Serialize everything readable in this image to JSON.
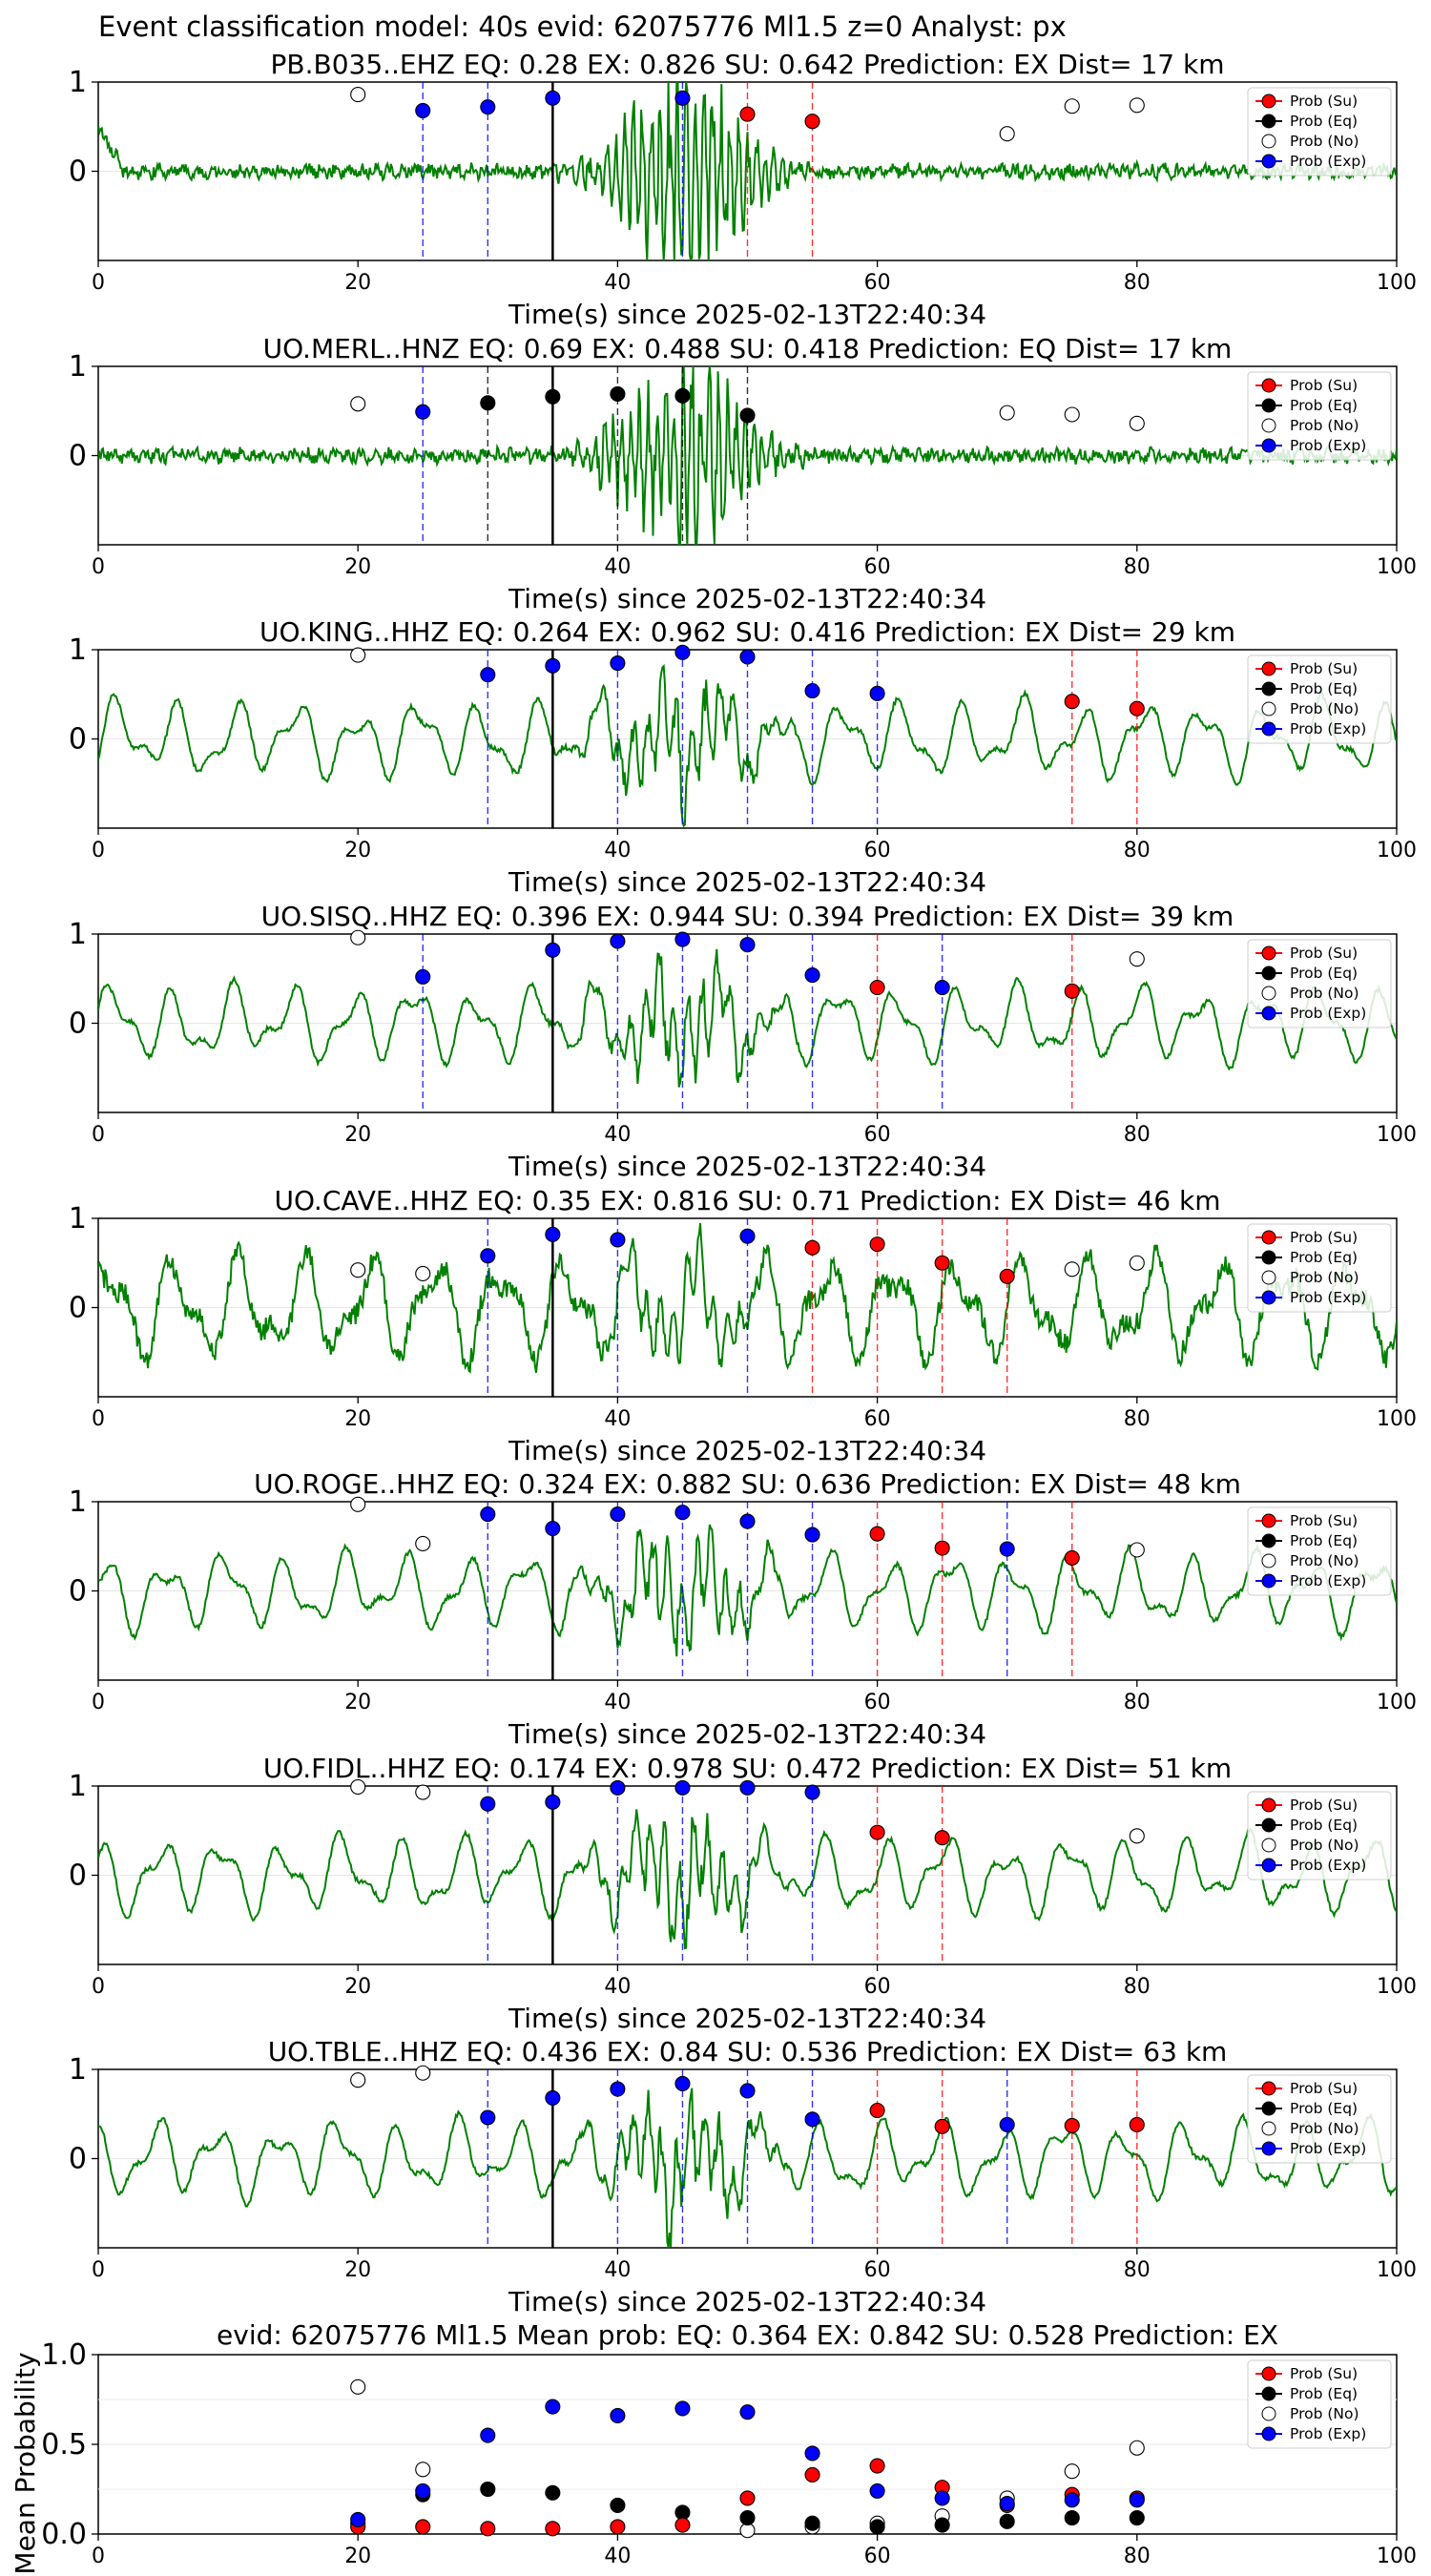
{
  "suptitle": "Event classification model: 40s evid: 62075776 Ml1.5 z=0 Analyst: px",
  "xlabel": "Time(s) since 2025-02-13T22:40:34",
  "legend": [
    "Prob (Su)",
    "Prob (Eq)",
    "Prob (No)",
    "Prob (Exp)"
  ],
  "colors": {
    "waveform": "#008000",
    "su": "#ff0000",
    "eq": "#000000",
    "no": "#ffffff",
    "exp": "#0000ff",
    "axis": "#000000"
  },
  "chart_data": [
    {
      "type": "line",
      "title": "PB.B035..EHZ   EQ: 0.28  EX: 0.826  SU: 0.642   Prediction: EX    Dist= 17 km",
      "xlim": [
        0,
        100
      ],
      "ylim": [
        -1,
        1
      ],
      "xticks": [
        0,
        20,
        40,
        60,
        80,
        100
      ],
      "yticks": [
        0,
        1
      ],
      "origin_line": 35,
      "waveform_style": "burst",
      "windows": [
        {
          "x": 25,
          "type": "exp"
        },
        {
          "x": 30,
          "type": "exp"
        },
        {
          "x": 45,
          "type": "exp"
        },
        {
          "x": 50,
          "type": "su"
        },
        {
          "x": 55,
          "type": "su"
        }
      ],
      "points": {
        "no": [
          [
            20,
            0.86
          ],
          [
            70,
            0.42
          ],
          [
            75,
            0.73
          ],
          [
            80,
            0.74
          ]
        ],
        "exp": [
          [
            25,
            0.68
          ],
          [
            30,
            0.72
          ],
          [
            35,
            0.82
          ],
          [
            45,
            0.82
          ]
        ],
        "su": [
          [
            50,
            0.64
          ],
          [
            55,
            0.56
          ]
        ],
        "eq": []
      }
    },
    {
      "type": "line",
      "title": "UO.MERL..HNZ   EQ: 0.69  EX: 0.488  SU: 0.418   Prediction: EQ    Dist= 17 km",
      "xlim": [
        0,
        100
      ],
      "ylim": [
        -1,
        1
      ],
      "xticks": [
        0,
        20,
        40,
        60,
        80,
        100
      ],
      "yticks": [
        0,
        1
      ],
      "origin_line": 35,
      "waveform_style": "burst",
      "windows": [
        {
          "x": 25,
          "type": "exp"
        },
        {
          "x": 30,
          "type": "eq"
        },
        {
          "x": 40,
          "type": "eq"
        },
        {
          "x": 45,
          "type": "eq"
        },
        {
          "x": 50,
          "type": "eq"
        }
      ],
      "points": {
        "no": [
          [
            20,
            0.58
          ],
          [
            70,
            0.48
          ],
          [
            75,
            0.46
          ],
          [
            80,
            0.36
          ]
        ],
        "exp": [
          [
            25,
            0.49
          ]
        ],
        "eq": [
          [
            30,
            0.59
          ],
          [
            35,
            0.66
          ],
          [
            40,
            0.69
          ],
          [
            45,
            0.67
          ],
          [
            50,
            0.45
          ]
        ],
        "su": []
      }
    },
    {
      "type": "line",
      "title": "UO.KING..HHZ   EQ: 0.264  EX: 0.962  SU: 0.416   Prediction: EX    Dist= 29 km",
      "xlim": [
        0,
        100
      ],
      "ylim": [
        -1,
        1
      ],
      "xticks": [
        0,
        20,
        40,
        60,
        80,
        100
      ],
      "yticks": [
        0,
        1
      ],
      "origin_line": 35,
      "waveform_style": "smooth",
      "windows": [
        {
          "x": 30,
          "type": "exp"
        },
        {
          "x": 40,
          "type": "exp"
        },
        {
          "x": 45,
          "type": "exp"
        },
        {
          "x": 50,
          "type": "exp"
        },
        {
          "x": 55,
          "type": "exp"
        },
        {
          "x": 60,
          "type": "exp"
        },
        {
          "x": 75,
          "type": "su"
        },
        {
          "x": 80,
          "type": "su"
        }
      ],
      "points": {
        "no": [
          [
            20,
            0.94
          ]
        ],
        "exp": [
          [
            30,
            0.72
          ],
          [
            35,
            0.82
          ],
          [
            40,
            0.85
          ],
          [
            45,
            0.97
          ],
          [
            50,
            0.92
          ],
          [
            55,
            0.54
          ],
          [
            60,
            0.51
          ]
        ],
        "su": [
          [
            75,
            0.42
          ],
          [
            80,
            0.34
          ]
        ],
        "eq": []
      }
    },
    {
      "type": "line",
      "title": "UO.SISQ..HHZ   EQ: 0.396  EX: 0.944  SU: 0.394   Prediction: EX    Dist= 39 km",
      "xlim": [
        0,
        100
      ],
      "ylim": [
        -1,
        1
      ],
      "xticks": [
        0,
        20,
        40,
        60,
        80,
        100
      ],
      "yticks": [
        0,
        1
      ],
      "origin_line": 35,
      "waveform_style": "smooth",
      "windows": [
        {
          "x": 25,
          "type": "exp"
        },
        {
          "x": 40,
          "type": "exp"
        },
        {
          "x": 45,
          "type": "exp"
        },
        {
          "x": 50,
          "type": "exp"
        },
        {
          "x": 55,
          "type": "exp"
        },
        {
          "x": 60,
          "type": "su"
        },
        {
          "x": 65,
          "type": "exp"
        },
        {
          "x": 75,
          "type": "su"
        }
      ],
      "points": {
        "no": [
          [
            20,
            0.96
          ],
          [
            80,
            0.72
          ]
        ],
        "exp": [
          [
            25,
            0.52
          ],
          [
            35,
            0.82
          ],
          [
            40,
            0.92
          ],
          [
            45,
            0.94
          ],
          [
            50,
            0.88
          ],
          [
            55,
            0.54
          ],
          [
            65,
            0.4
          ]
        ],
        "su": [
          [
            60,
            0.4
          ],
          [
            75,
            0.36
          ]
        ],
        "eq": []
      }
    },
    {
      "type": "line",
      "title": "UO.CAVE..HHZ   EQ: 0.35  EX: 0.816  SU: 0.71   Prediction: EX    Dist= 46 km",
      "xlim": [
        0,
        100
      ],
      "ylim": [
        -1,
        1
      ],
      "xticks": [
        0,
        20,
        40,
        60,
        80,
        100
      ],
      "yticks": [
        0,
        1
      ],
      "origin_line": 35,
      "waveform_style": "noisy",
      "windows": [
        {
          "x": 30,
          "type": "exp"
        },
        {
          "x": 40,
          "type": "exp"
        },
        {
          "x": 50,
          "type": "exp"
        },
        {
          "x": 55,
          "type": "su"
        },
        {
          "x": 60,
          "type": "su"
        },
        {
          "x": 65,
          "type": "su"
        },
        {
          "x": 70,
          "type": "su"
        }
      ],
      "points": {
        "no": [
          [
            20,
            0.42
          ],
          [
            25,
            0.38
          ],
          [
            75,
            0.43
          ],
          [
            80,
            0.5
          ]
        ],
        "exp": [
          [
            30,
            0.58
          ],
          [
            35,
            0.82
          ],
          [
            40,
            0.76
          ],
          [
            50,
            0.8
          ]
        ],
        "su": [
          [
            55,
            0.67
          ],
          [
            60,
            0.71
          ],
          [
            65,
            0.5
          ],
          [
            70,
            0.35
          ]
        ],
        "eq": []
      }
    },
    {
      "type": "line",
      "title": "UO.ROGE..HHZ   EQ: 0.324  EX: 0.882  SU: 0.636   Prediction: EX    Dist= 48 km",
      "xlim": [
        0,
        100
      ],
      "ylim": [
        -1,
        1
      ],
      "xticks": [
        0,
        20,
        40,
        60,
        80,
        100
      ],
      "yticks": [
        0,
        1
      ],
      "origin_line": 35,
      "waveform_style": "smooth",
      "windows": [
        {
          "x": 30,
          "type": "exp"
        },
        {
          "x": 40,
          "type": "exp"
        },
        {
          "x": 45,
          "type": "exp"
        },
        {
          "x": 50,
          "type": "exp"
        },
        {
          "x": 55,
          "type": "exp"
        },
        {
          "x": 60,
          "type": "su"
        },
        {
          "x": 65,
          "type": "su"
        },
        {
          "x": 70,
          "type": "exp"
        },
        {
          "x": 75,
          "type": "su"
        }
      ],
      "points": {
        "no": [
          [
            20,
            0.97
          ],
          [
            25,
            0.53
          ],
          [
            80,
            0.46
          ]
        ],
        "exp": [
          [
            30,
            0.86
          ],
          [
            35,
            0.7
          ],
          [
            40,
            0.86
          ],
          [
            45,
            0.88
          ],
          [
            50,
            0.78
          ],
          [
            55,
            0.63
          ],
          [
            70,
            0.47
          ]
        ],
        "su": [
          [
            60,
            0.64
          ],
          [
            65,
            0.48
          ],
          [
            75,
            0.37
          ]
        ],
        "eq": []
      }
    },
    {
      "type": "line",
      "title": "UO.FIDL..HHZ   EQ: 0.174  EX: 0.978  SU: 0.472   Prediction: EX    Dist= 51 km",
      "xlim": [
        0,
        100
      ],
      "ylim": [
        -1,
        1
      ],
      "xticks": [
        0,
        20,
        40,
        60,
        80,
        100
      ],
      "yticks": [
        0,
        1
      ],
      "origin_line": 35,
      "waveform_style": "smooth",
      "windows": [
        {
          "x": 30,
          "type": "exp"
        },
        {
          "x": 40,
          "type": "exp"
        },
        {
          "x": 45,
          "type": "exp"
        },
        {
          "x": 50,
          "type": "exp"
        },
        {
          "x": 55,
          "type": "exp"
        },
        {
          "x": 60,
          "type": "su"
        },
        {
          "x": 65,
          "type": "su"
        }
      ],
      "points": {
        "no": [
          [
            20,
            0.99
          ],
          [
            25,
            0.93
          ],
          [
            80,
            0.44
          ]
        ],
        "exp": [
          [
            30,
            0.8
          ],
          [
            35,
            0.82
          ],
          [
            40,
            0.98
          ],
          [
            45,
            0.98
          ],
          [
            50,
            0.98
          ],
          [
            55,
            0.93
          ]
        ],
        "su": [
          [
            60,
            0.48
          ],
          [
            65,
            0.42
          ]
        ],
        "eq": []
      }
    },
    {
      "type": "line",
      "title": "UO.TBLE..HHZ   EQ: 0.436  EX: 0.84  SU: 0.536   Prediction: EX    Dist= 63 km",
      "xlim": [
        0,
        100
      ],
      "ylim": [
        -1,
        1
      ],
      "xticks": [
        0,
        20,
        40,
        60,
        80,
        100
      ],
      "yticks": [
        0,
        1
      ],
      "origin_line": 35,
      "waveform_style": "smooth",
      "windows": [
        {
          "x": 30,
          "type": "exp"
        },
        {
          "x": 40,
          "type": "exp"
        },
        {
          "x": 45,
          "type": "exp"
        },
        {
          "x": 50,
          "type": "exp"
        },
        {
          "x": 55,
          "type": "exp"
        },
        {
          "x": 60,
          "type": "su"
        },
        {
          "x": 65,
          "type": "su"
        },
        {
          "x": 70,
          "type": "exp"
        },
        {
          "x": 75,
          "type": "su"
        },
        {
          "x": 80,
          "type": "su"
        }
      ],
      "points": {
        "no": [
          [
            20,
            0.88
          ],
          [
            25,
            0.96
          ]
        ],
        "exp": [
          [
            30,
            0.46
          ],
          [
            35,
            0.68
          ],
          [
            40,
            0.78
          ],
          [
            45,
            0.84
          ],
          [
            50,
            0.76
          ],
          [
            55,
            0.44
          ],
          [
            70,
            0.38
          ]
        ],
        "su": [
          [
            60,
            0.54
          ],
          [
            65,
            0.36
          ],
          [
            75,
            0.37
          ],
          [
            80,
            0.38
          ]
        ],
        "eq": []
      }
    },
    {
      "type": "scatter",
      "title": "evid: 62075776  Ml1.5   Mean prob:   EQ: 0.364  EX: 0.842  SU: 0.528   Prediction: EX",
      "ylabel": "Mean Probability",
      "xlim": [
        0,
        100
      ],
      "ylim": [
        0,
        1
      ],
      "xticks": [
        0,
        20,
        40,
        60,
        80,
        100
      ],
      "yticks": [
        0.0,
        0.5,
        1.0
      ],
      "ytick_labels": [
        "0.0",
        "0.5",
        "1.0"
      ],
      "points": {
        "no": [
          [
            20,
            0.82
          ],
          [
            25,
            0.36
          ],
          [
            50,
            0.02
          ],
          [
            55,
            0.04
          ],
          [
            60,
            0.06
          ],
          [
            65,
            0.1
          ],
          [
            70,
            0.2
          ],
          [
            75,
            0.35
          ],
          [
            80,
            0.48
          ]
        ],
        "eq": [
          [
            20,
            0.06
          ],
          [
            25,
            0.22
          ],
          [
            30,
            0.25
          ],
          [
            35,
            0.23
          ],
          [
            40,
            0.16
          ],
          [
            45,
            0.12
          ],
          [
            50,
            0.09
          ],
          [
            55,
            0.06
          ],
          [
            60,
            0.04
          ],
          [
            65,
            0.05
          ],
          [
            70,
            0.07
          ],
          [
            75,
            0.09
          ],
          [
            80,
            0.09
          ]
        ],
        "su": [
          [
            20,
            0.04
          ],
          [
            25,
            0.04
          ],
          [
            30,
            0.03
          ],
          [
            35,
            0.03
          ],
          [
            40,
            0.04
          ],
          [
            45,
            0.05
          ],
          [
            50,
            0.2
          ],
          [
            55,
            0.33
          ],
          [
            60,
            0.38
          ],
          [
            65,
            0.26
          ],
          [
            70,
            0.16
          ],
          [
            75,
            0.22
          ],
          [
            80,
            0.2
          ]
        ],
        "exp": [
          [
            20,
            0.08
          ],
          [
            25,
            0.24
          ],
          [
            30,
            0.55
          ],
          [
            35,
            0.71
          ],
          [
            40,
            0.66
          ],
          [
            45,
            0.7
          ],
          [
            50,
            0.68
          ],
          [
            55,
            0.45
          ],
          [
            60,
            0.24
          ],
          [
            65,
            0.2
          ],
          [
            70,
            0.17
          ],
          [
            75,
            0.19
          ],
          [
            80,
            0.19
          ]
        ]
      }
    }
  ]
}
